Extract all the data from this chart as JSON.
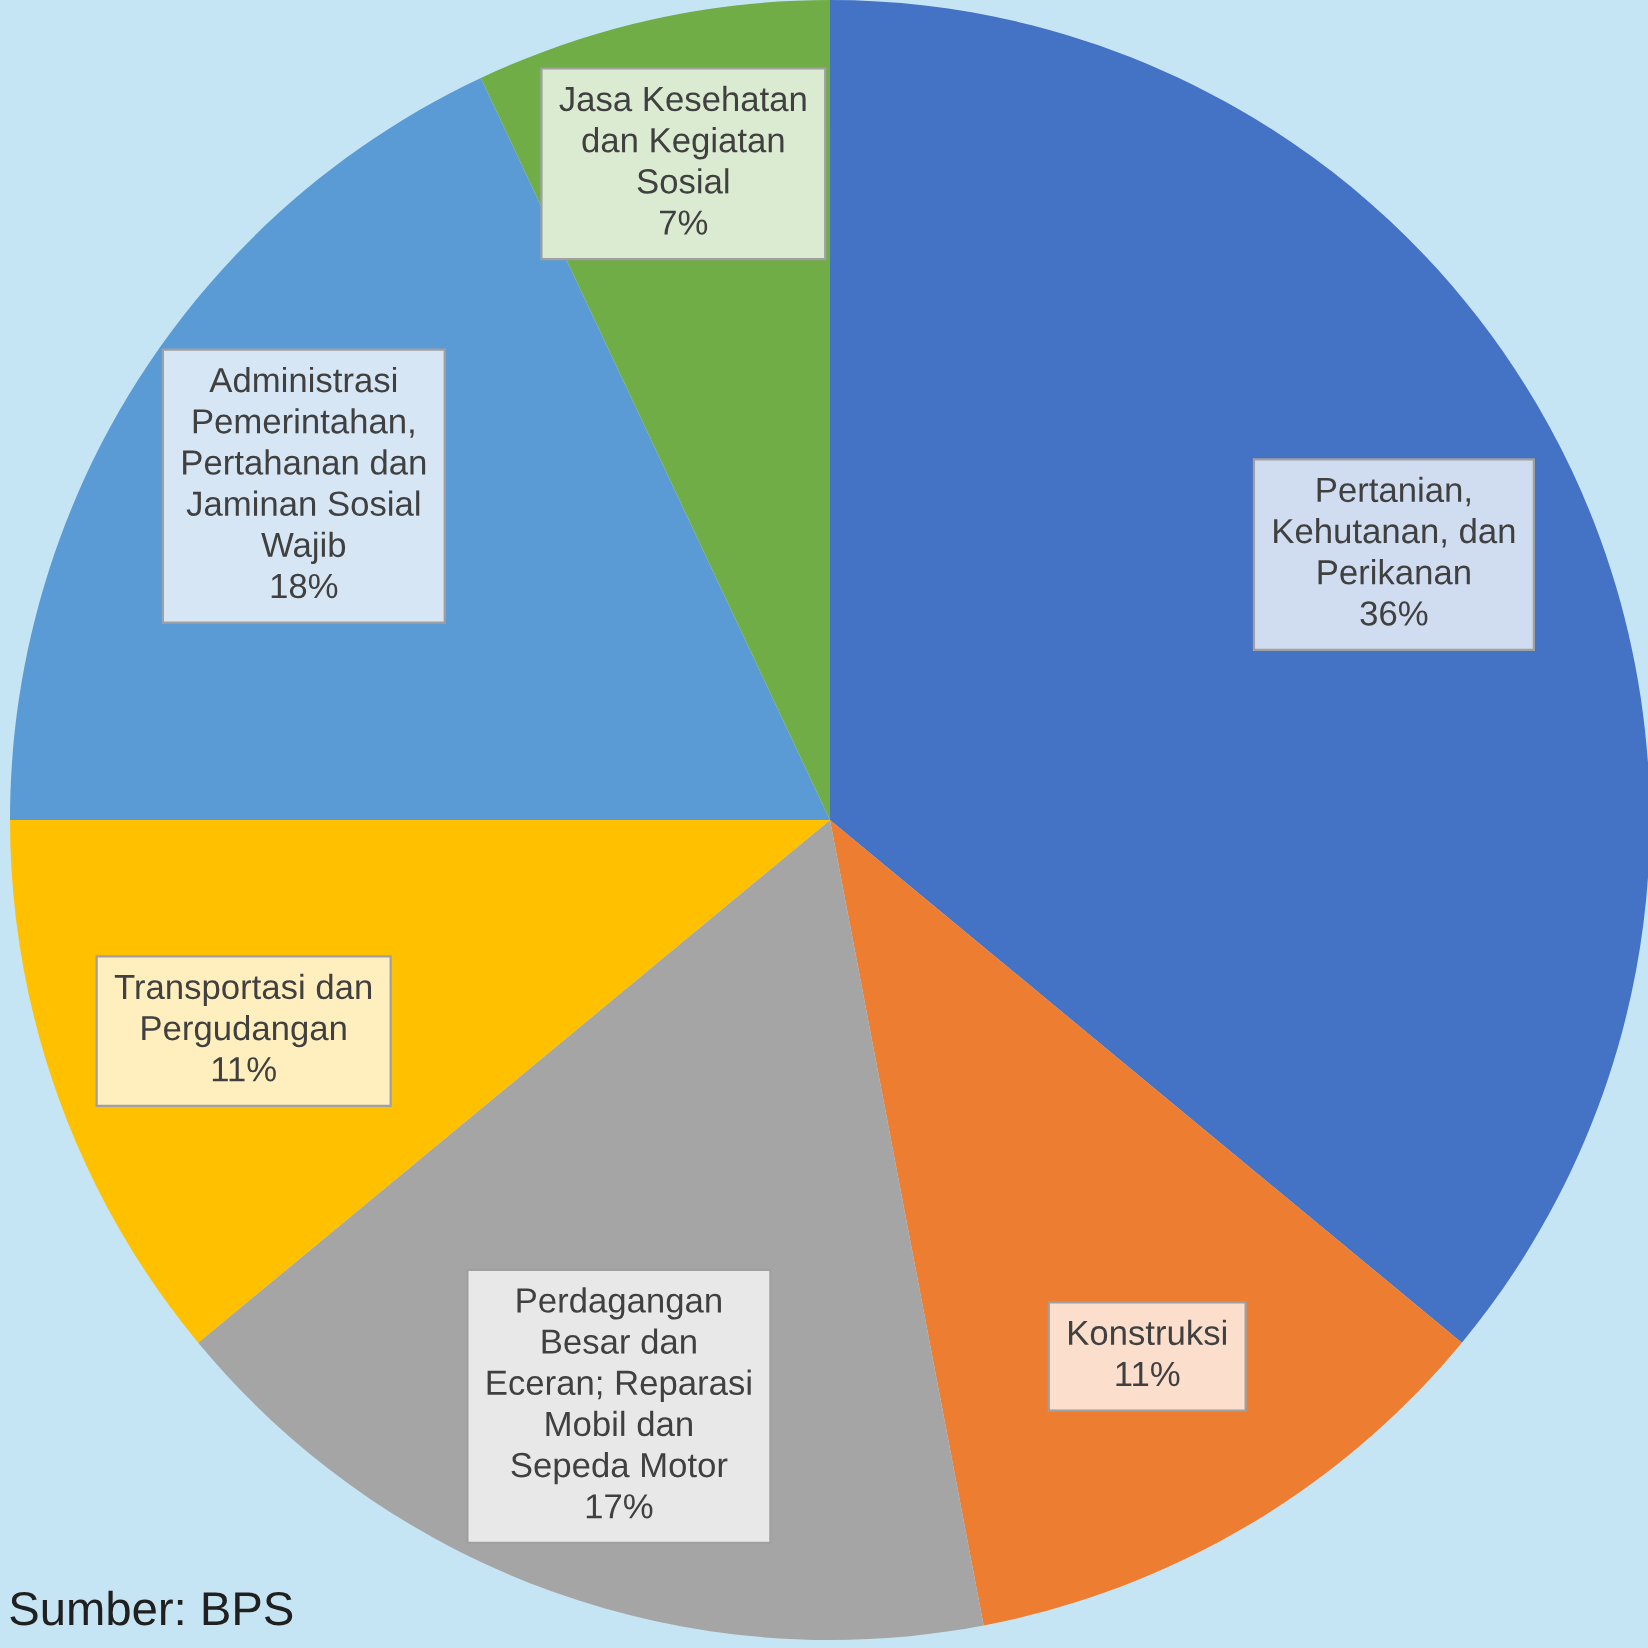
{
  "chart_data": {
    "type": "pie",
    "categories": [
      "Pertanian,\nKehutanan, dan\nPerikanan",
      "Konstruksi",
      "Perdagangan\nBesar dan\nEceran; Reparasi\nMobil dan\nSepeda Motor",
      "Transportasi dan\nPergudangan",
      "Administrasi\nPemerintahan,\nPertahanan dan\nJaminan Sosial\nWajib",
      "Jasa Kesehatan\ndan Kegiatan\nSosial"
    ],
    "values": [
      36,
      11,
      17,
      11,
      18,
      7
    ],
    "value_labels": [
      "36%",
      "11%",
      "17%",
      "11%",
      "18%",
      "7%"
    ],
    "colors": [
      "#4472c4",
      "#ed7d31",
      "#a5a5a5",
      "#ffc000",
      "#5b9bd5",
      "#70ad47"
    ],
    "annotations": [
      "Sumber: BPS"
    ]
  }
}
